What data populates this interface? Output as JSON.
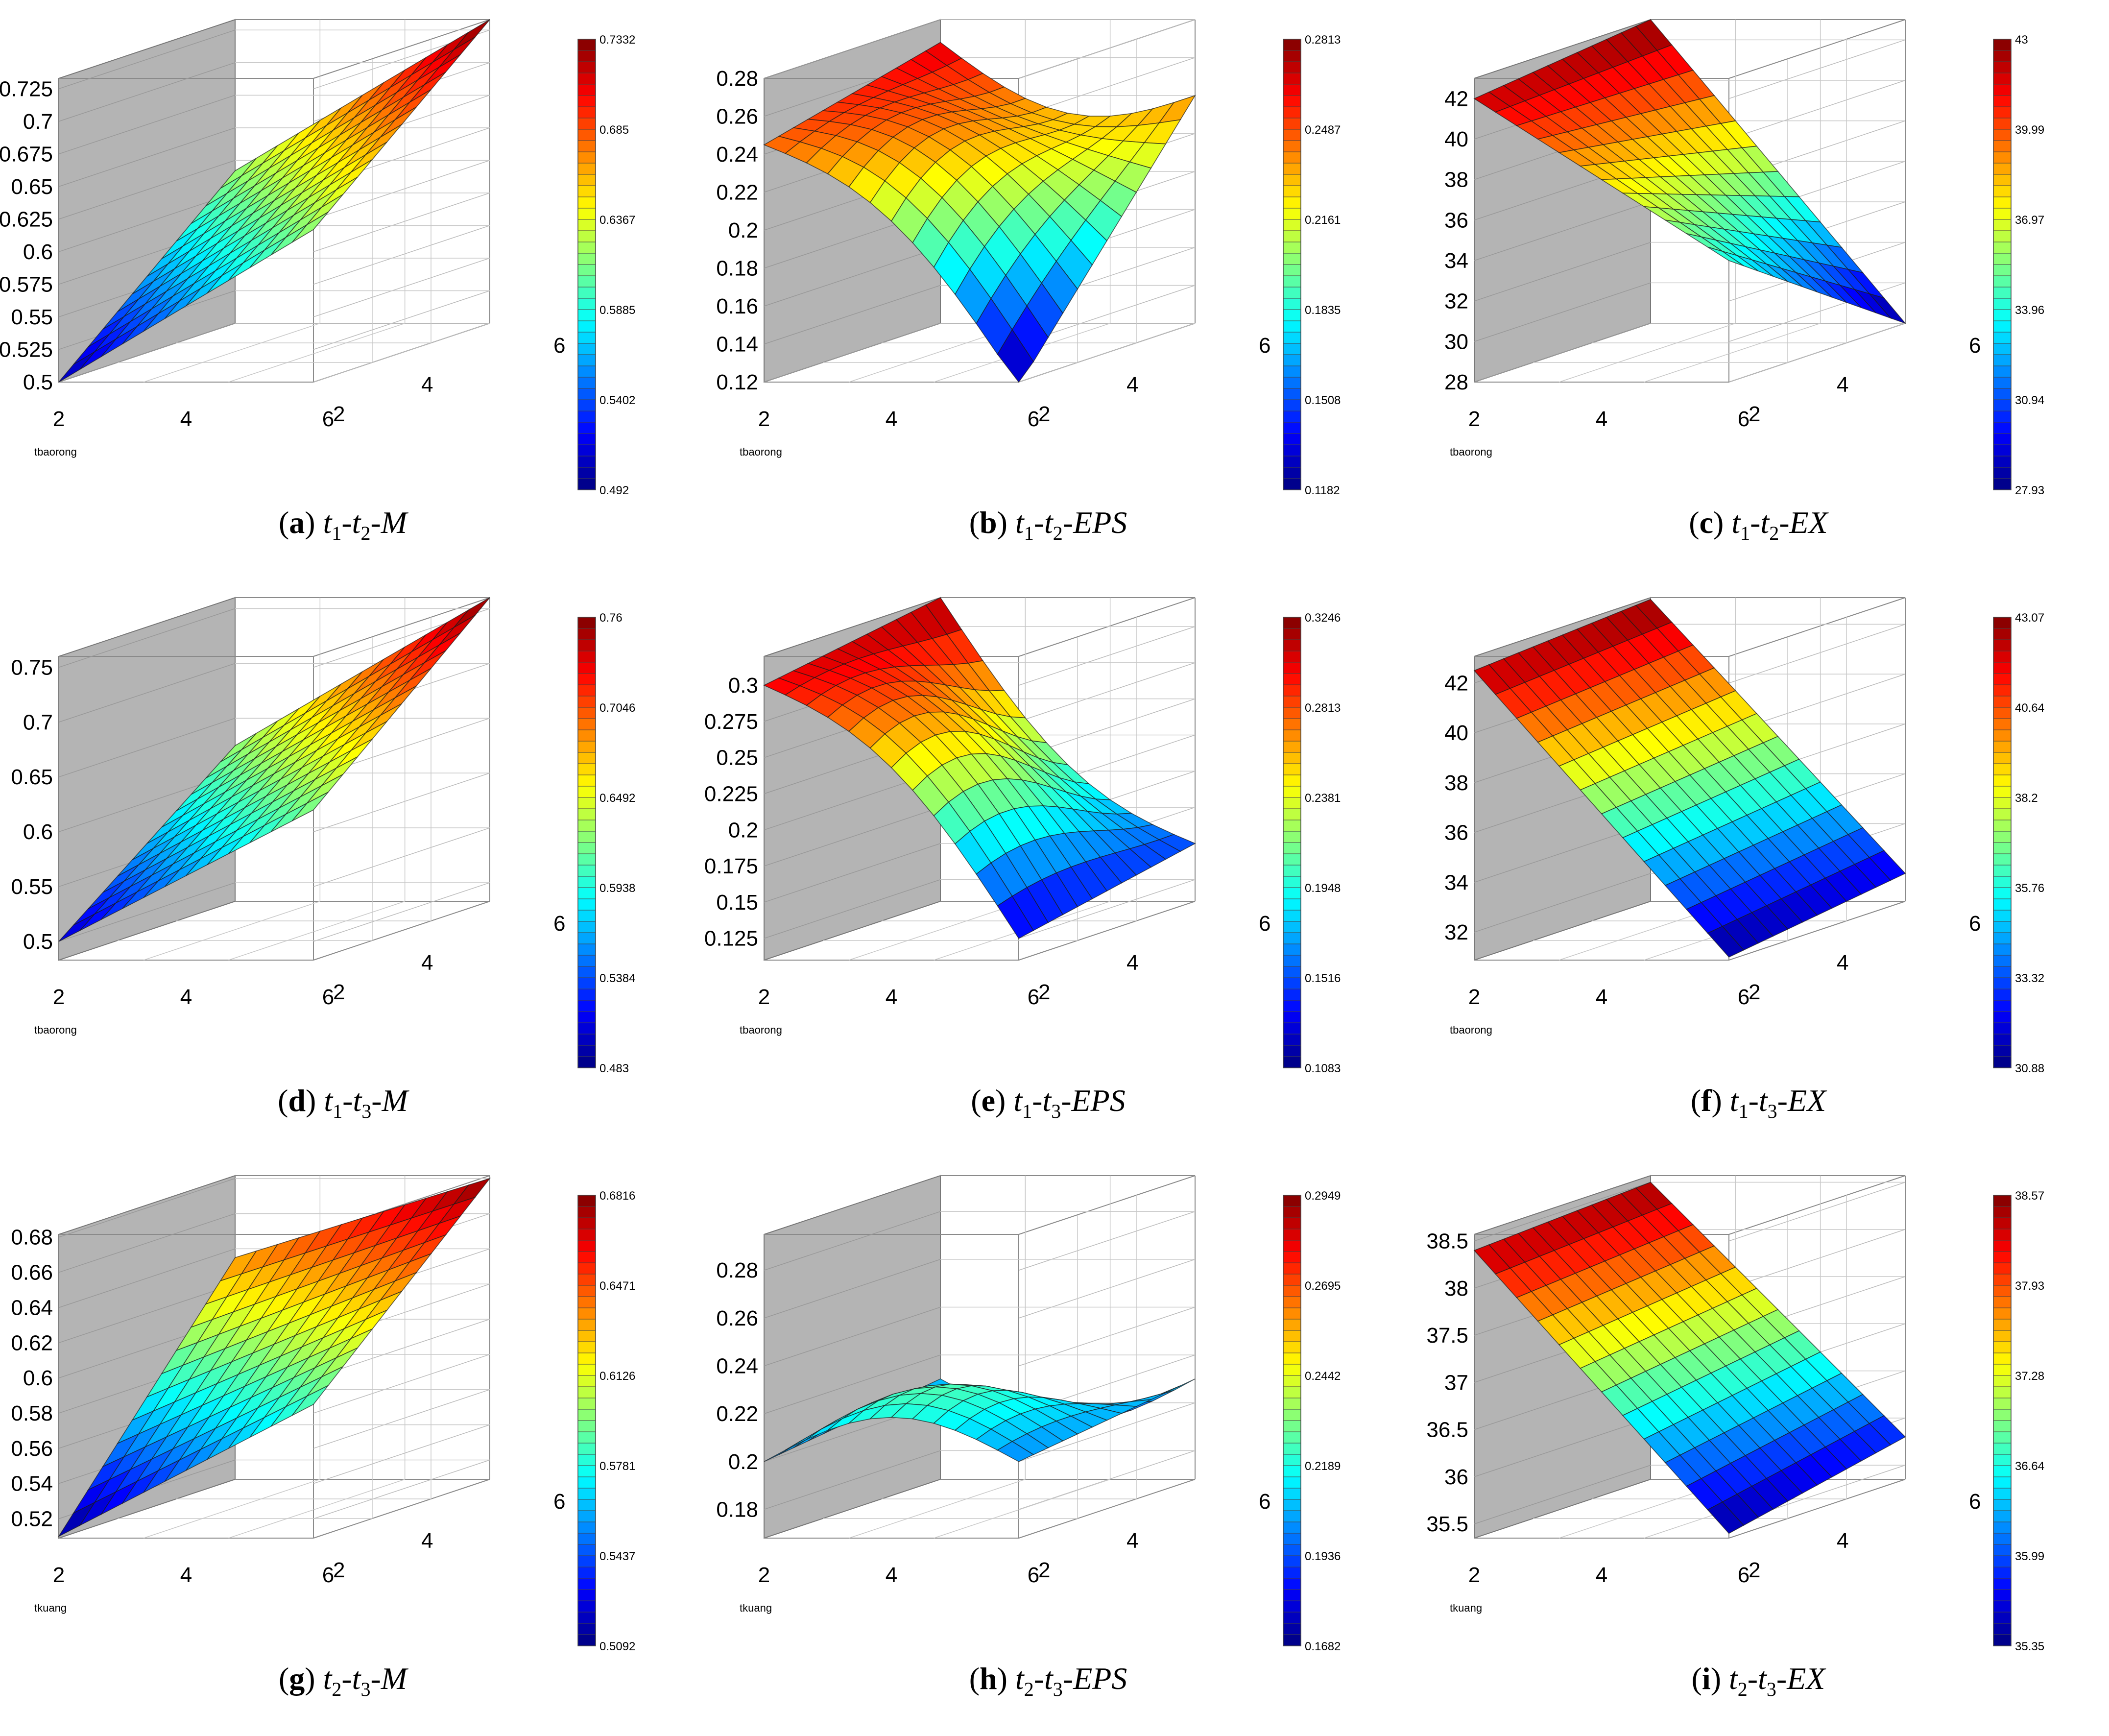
{
  "figure": {
    "panels": [
      {
        "id": "a",
        "subs": [
          "1",
          "2"
        ],
        "metric": "M"
      },
      {
        "id": "b",
        "subs": [
          "1",
          "2"
        ],
        "metric": "EPS"
      },
      {
        "id": "c",
        "subs": [
          "1",
          "2"
        ],
        "metric": "EX"
      },
      {
        "id": "d",
        "subs": [
          "1",
          "3"
        ],
        "metric": "M"
      },
      {
        "id": "e",
        "subs": [
          "1",
          "3"
        ],
        "metric": "EPS"
      },
      {
        "id": "f",
        "subs": [
          "1",
          "3"
        ],
        "metric": "EX"
      },
      {
        "id": "g",
        "subs": [
          "2",
          "3"
        ],
        "metric": "M"
      },
      {
        "id": "h",
        "subs": [
          "2",
          "3"
        ],
        "metric": "EPS"
      },
      {
        "id": "i",
        "subs": [
          "2",
          "3"
        ],
        "metric": "EX"
      }
    ]
  },
  "chart_data": [
    {
      "type": "surface",
      "panel": "a",
      "caption": "(a) t1-t2-M",
      "xlabel": "tbaorong",
      "x_ticks": [
        "2",
        "4",
        "6"
      ],
      "y_ticks": [
        "2",
        "4",
        "6"
      ],
      "zlim": [
        0.5,
        0.733
      ],
      "z_ticks": [
        "0.725",
        "0.7",
        "0.675",
        "0.65",
        "0.625",
        "0.6",
        "0.575",
        "0.55",
        "0.525",
        "0.5"
      ],
      "colorbar": {
        "min": 0.492,
        "max": 0.7332,
        "ticks": [
          "0.7332",
          "0.685",
          "0.6367",
          "0.5885",
          "0.5402",
          "0.492"
        ]
      },
      "corners": {
        "x_low_y_low": 0.5,
        "x_high_y_low": 0.617,
        "x_low_y_high": 0.617,
        "x_high_y_high": 0.733
      }
    },
    {
      "type": "surface",
      "panel": "b",
      "caption": "(b) t1-t2-EPS",
      "xlabel": "tbaorong",
      "x_ticks": [
        "2",
        "4",
        "6"
      ],
      "y_ticks": [
        "2",
        "4",
        "6"
      ],
      "zlim": [
        0.12,
        0.28
      ],
      "z_ticks": [
        "0.28",
        "0.26",
        "0.24",
        "0.22",
        "0.2",
        "0.18",
        "0.16",
        "0.14",
        "0.12"
      ],
      "colorbar": {
        "min": 0.1182,
        "max": 0.2813,
        "ticks": [
          "0.2813",
          "0.2487",
          "0.2161",
          "0.1835",
          "0.1508",
          "0.1182"
        ]
      },
      "corners": {
        "x_low_y_low": 0.245,
        "x_high_y_low": 0.118,
        "x_low_y_high": 0.268,
        "x_high_y_high": 0.24
      }
    },
    {
      "type": "surface",
      "panel": "c",
      "caption": "(c) t1-t2-EX",
      "xlabel": "tbaorong",
      "x_ticks": [
        "2",
        "4",
        "6"
      ],
      "y_ticks": [
        "2",
        "4",
        "6"
      ],
      "zlim": [
        28,
        43
      ],
      "z_ticks": [
        "42",
        "40",
        "38",
        "36",
        "34",
        "32",
        "30",
        "28"
      ],
      "colorbar": {
        "min": 27.93,
        "max": 43,
        "ticks": [
          "43",
          "39.99",
          "36.97",
          "33.96",
          "30.94",
          "27.93"
        ]
      },
      "corners": {
        "x_low_y_low": 42.0,
        "x_high_y_low": 34.0,
        "x_low_y_high": 43.0,
        "x_high_y_high": 28.0
      }
    },
    {
      "type": "surface",
      "panel": "d",
      "caption": "(d) t1-t3-M",
      "xlabel": "tbaorong",
      "x_ticks": [
        "2",
        "4",
        "6"
      ],
      "y_ticks": [
        "2",
        "4",
        "6"
      ],
      "zlim": [
        0.483,
        0.76
      ],
      "z_ticks": [
        "0.75",
        "0.7",
        "0.65",
        "0.6",
        "0.55",
        "0.5"
      ],
      "colorbar": {
        "min": 0.483,
        "max": 0.76,
        "ticks": [
          "0.76",
          "0.7046",
          "0.6492",
          "0.5938",
          "0.5384",
          "0.483"
        ]
      },
      "corners": {
        "x_low_y_low": 0.5,
        "x_high_y_low": 0.62,
        "x_low_y_high": 0.625,
        "x_high_y_high": 0.76
      }
    },
    {
      "type": "surface",
      "panel": "e",
      "caption": "(e) t1-t3-EPS",
      "xlabel": "tbaorong",
      "x_ticks": [
        "2",
        "4",
        "6"
      ],
      "y_ticks": [
        "2",
        "4",
        "6"
      ],
      "zlim": [
        0.11,
        0.32
      ],
      "z_ticks": [
        "0.3",
        "0.275",
        "0.25",
        "0.225",
        "0.2",
        "0.175",
        "0.15",
        "0.125"
      ],
      "colorbar": {
        "min": 0.1083,
        "max": 0.3246,
        "ticks": [
          "0.3246",
          "0.2813",
          "0.2381",
          "0.1948",
          "0.1516",
          "0.1083"
        ]
      },
      "corners": {
        "x_low_y_low": 0.3,
        "x_high_y_low": 0.125,
        "x_low_y_high": 0.32,
        "x_high_y_high": 0.15
      }
    },
    {
      "type": "surface",
      "panel": "f",
      "caption": "(f) t1-t3-EX",
      "xlabel": "tbaorong",
      "x_ticks": [
        "2",
        "4",
        "6"
      ],
      "y_ticks": [
        "2",
        "4",
        "6"
      ],
      "zlim": [
        30.88,
        43.07
      ],
      "z_ticks": [
        "42",
        "40",
        "38",
        "36",
        "34",
        "32"
      ],
      "colorbar": {
        "min": 30.88,
        "max": 43.07,
        "ticks": [
          "43.07",
          "40.64",
          "38.2",
          "35.76",
          "33.32",
          "30.88"
        ]
      },
      "corners": {
        "x_low_y_low": 42.5,
        "x_high_y_low": 31.0,
        "x_low_y_high": 43.0,
        "x_high_y_high": 32.0
      }
    },
    {
      "type": "surface",
      "panel": "g",
      "caption": "(g) t2-t3-M",
      "xlabel": "tkuang",
      "x_ticks": [
        "2",
        "4",
        "6"
      ],
      "y_ticks": [
        "2",
        "4",
        "6"
      ],
      "zlim": [
        0.509,
        0.6816
      ],
      "z_ticks": [
        "0.68",
        "0.66",
        "0.64",
        "0.62",
        "0.6",
        "0.58",
        "0.56",
        "0.54",
        "0.52"
      ],
      "colorbar": {
        "min": 0.5092,
        "max": 0.6816,
        "ticks": [
          "0.6816",
          "0.6471",
          "0.6126",
          "0.5781",
          "0.5437",
          "0.5092"
        ]
      },
      "corners": {
        "x_low_y_low": 0.51,
        "x_high_y_low": 0.585,
        "x_low_y_high": 0.635,
        "x_high_y_high": 0.68
      }
    },
    {
      "type": "surface",
      "panel": "h",
      "caption": "(h) t2-t3-EPS",
      "xlabel": "tkuang",
      "x_ticks": [
        "2",
        "4",
        "6"
      ],
      "y_ticks": [
        "2",
        "4",
        "6"
      ],
      "zlim": [
        0.168,
        0.295
      ],
      "z_ticks": [
        "0.28",
        "0.26",
        "0.24",
        "0.22",
        "0.2",
        "0.18"
      ],
      "colorbar": {
        "min": 0.1682,
        "max": 0.2949,
        "ticks": [
          "0.2949",
          "0.2695",
          "0.2442",
          "0.2189",
          "0.1936",
          "0.1682"
        ]
      },
      "corners": {
        "x_low_y_low": 0.2,
        "x_high_y_low": 0.2,
        "x_low_y_high": 0.21,
        "x_high_y_high": 0.21
      }
    },
    {
      "type": "surface",
      "panel": "i",
      "caption": "(i) t2-t3-EX",
      "xlabel": "tkuang",
      "x_ticks": [
        "2",
        "4",
        "6"
      ],
      "y_ticks": [
        "2",
        "4",
        "6"
      ],
      "zlim": [
        35.35,
        38.57
      ],
      "z_ticks": [
        "38.5",
        "38",
        "37.5",
        "37",
        "36.5",
        "36",
        "35.5"
      ],
      "colorbar": {
        "min": 35.35,
        "max": 38.57,
        "ticks": [
          "38.57",
          "37.93",
          "37.28",
          "36.64",
          "35.99",
          "35.35"
        ]
      },
      "corners": {
        "x_low_y_low": 38.4,
        "x_high_y_low": 35.4,
        "x_low_y_high": 38.5,
        "x_high_y_high": 35.8
      }
    }
  ]
}
